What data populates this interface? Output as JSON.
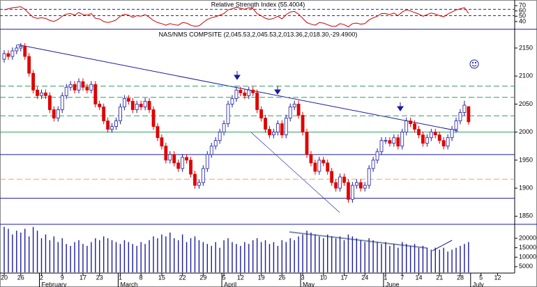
{
  "chart_data": [
    {
      "type": "line",
      "title": "Relative Strength Index (55.4004)",
      "color": "#cc0000",
      "values": [
        62,
        64,
        66,
        67,
        68,
        63,
        55,
        48,
        46,
        47,
        46,
        42,
        40,
        44,
        50,
        54,
        55,
        52,
        57,
        53,
        52,
        55,
        46,
        45,
        40,
        38,
        40,
        43,
        50,
        54,
        52,
        48,
        51,
        50,
        53,
        48,
        42,
        38,
        36,
        33,
        36,
        34,
        33,
        38,
        37,
        33,
        31,
        32,
        38,
        44,
        47,
        49,
        52,
        55,
        62,
        64,
        67,
        65,
        63,
        66,
        64,
        55,
        51,
        46,
        44,
        46,
        50,
        45,
        53,
        58,
        59,
        54,
        46,
        38,
        35,
        33,
        38,
        37,
        34,
        31,
        31,
        36,
        34,
        30,
        36,
        37,
        35,
        36,
        43,
        47,
        50,
        55,
        55,
        53,
        56,
        51,
        58,
        62,
        60,
        57,
        54,
        50,
        53,
        56,
        54,
        51,
        49,
        54,
        58,
        62,
        64,
        66,
        55.4004,
        null,
        null,
        null,
        null,
        null,
        null,
        null
      ],
      "ylim": [
        28,
        78
      ],
      "yticks": [
        40,
        50,
        60,
        70
      ],
      "reference_lines": [
        63,
        51
      ],
      "reference_color": "#2020c0"
    },
    {
      "type": "candlestick",
      "title": "NAS/NMS COMPSITE (2,045.53,2,045.53,2,013.36,2,018.30,-29.4900)",
      "categories": [
        "20",
        null,
        null,
        null,
        "26",
        null,
        null,
        null,
        null,
        "2",
        null,
        null,
        null,
        null,
        "9",
        null,
        null,
        null,
        null,
        "17",
        null,
        null,
        null,
        "23",
        null,
        null,
        null,
        null,
        "1",
        null,
        null,
        null,
        null,
        "8",
        null,
        null,
        null,
        null,
        "15",
        null,
        null,
        null,
        null,
        "22",
        null,
        null,
        null,
        null,
        "29",
        null,
        null,
        null,
        null,
        "5",
        null,
        null,
        null,
        "12",
        null,
        null,
        null,
        null,
        "19",
        null,
        null,
        null,
        null,
        "26",
        null,
        null,
        null,
        null,
        "3",
        null,
        null,
        null,
        null,
        "10",
        null,
        null,
        null,
        null,
        "17",
        null,
        null,
        null,
        null,
        "24",
        null,
        null,
        null,
        null,
        "1",
        null,
        null,
        null,
        "7",
        null,
        null,
        null,
        "14",
        null,
        null,
        null,
        null,
        "21",
        null,
        null,
        null,
        null,
        "28",
        null,
        null,
        null,
        null,
        "5",
        null,
        null,
        null,
        "12"
      ],
      "months": [
        null,
        null,
        null,
        null,
        null,
        null,
        null,
        null,
        null,
        "February",
        null,
        null,
        null,
        null,
        null,
        null,
        null,
        null,
        null,
        null,
        null,
        null,
        null,
        null,
        null,
        null,
        null,
        null,
        "March",
        null,
        null,
        null,
        null,
        null,
        null,
        null,
        null,
        null,
        null,
        null,
        null,
        null,
        null,
        null,
        null,
        null,
        null,
        null,
        null,
        null,
        null,
        null,
        null,
        "April",
        null,
        null,
        null,
        null,
        null,
        null,
        null,
        null,
        null,
        null,
        null,
        null,
        null,
        null,
        null,
        null,
        null,
        null,
        "May",
        null,
        null,
        null,
        null,
        null,
        null,
        null,
        null,
        null,
        null,
        null,
        null,
        null,
        null,
        null,
        null,
        null,
        null,
        null,
        "June",
        null,
        null,
        null,
        null,
        null,
        null,
        null,
        null,
        null,
        null,
        null,
        null,
        null,
        null,
        null,
        null,
        null,
        null,
        null,
        null,
        "July",
        null,
        null,
        null,
        null,
        null,
        null
      ],
      "open": [
        2130,
        2140,
        2135,
        2145,
        2150,
        2153,
        2135,
        2105,
        2075,
        2065,
        2070,
        2065,
        2040,
        2025,
        2040,
        2065,
        2080,
        2085,
        2075,
        2090,
        2080,
        2075,
        2085,
        2050,
        2045,
        2020,
        2005,
        2010,
        2020,
        2045,
        2060,
        2055,
        2040,
        2050,
        2045,
        2055,
        2040,
        2010,
        1990,
        1975,
        1950,
        1960,
        1945,
        1935,
        1955,
        1950,
        1925,
        1905,
        1910,
        1935,
        1960,
        1975,
        1985,
        2000,
        2015,
        2050,
        2060,
        2075,
        2070,
        2065,
        2075,
        2070,
        2040,
        2025,
        2005,
        1995,
        2000,
        2015,
        1995,
        2025,
        2045,
        2050,
        2030,
        2000,
        1960,
        1945,
        1930,
        1950,
        1945,
        1930,
        1910,
        1900,
        1920,
        1910,
        1880,
        1905,
        1910,
        1900,
        1905,
        1935,
        1950,
        1965,
        1985,
        1985,
        1980,
        1990,
        1975,
        2000,
        2020,
        2015,
        2005,
        1995,
        1980,
        1990,
        2000,
        1995,
        1985,
        1975,
        1990,
        2005,
        2020,
        2035,
        2045.53,
        null,
        null,
        null,
        null,
        null,
        null,
        null
      ],
      "high": [
        2146,
        2146,
        2151,
        2156,
        2159,
        2159,
        2141,
        2111,
        2081,
        2076,
        2076,
        2071,
        2046,
        2046,
        2071,
        2086,
        2091,
        2091,
        2096,
        2096,
        2086,
        2091,
        2091,
        2056,
        2051,
        2026,
        2016,
        2026,
        2051,
        2066,
        2066,
        2061,
        2056,
        2056,
        2061,
        2061,
        2046,
        2016,
        1996,
        1981,
        1966,
        1966,
        1951,
        1961,
        1961,
        1956,
        1931,
        1916,
        1941,
        1966,
        1981,
        1991,
        2006,
        2021,
        2056,
        2066,
        2081,
        2081,
        2076,
        2081,
        2081,
        2076,
        2046,
        2031,
        2011,
        2006,
        2021,
        2021,
        2031,
        2051,
        2056,
        2056,
        2036,
        2006,
        1966,
        1951,
        1956,
        1956,
        1951,
        1936,
        1916,
        1926,
        1926,
        1916,
        1911,
        1916,
        1916,
        1911,
        1941,
        1956,
        1971,
        1991,
        1991,
        1991,
        1996,
        1996,
        2006,
        2026,
        2026,
        2021,
        2011,
        2001,
        1996,
        2006,
        2006,
        2001,
        1991,
        1996,
        2011,
        2026,
        2041,
        2056,
        2045.53,
        null,
        null,
        null,
        null,
        null,
        null,
        null
      ],
      "low": [
        2124,
        2129,
        2129,
        2139,
        2144,
        2129,
        2099,
        2069,
        2059,
        2059,
        2059,
        2034,
        2019,
        2019,
        2034,
        2059,
        2074,
        2069,
        2069,
        2074,
        2069,
        2069,
        2044,
        2039,
        2014,
        1999,
        1999,
        2004,
        2014,
        2039,
        2049,
        2034,
        2034,
        2039,
        2039,
        2034,
        2004,
        1984,
        1969,
        1944,
        1944,
        1939,
        1929,
        1929,
        1944,
        1919,
        1899,
        1899,
        1904,
        1929,
        1954,
        1969,
        1979,
        1994,
        2009,
        2044,
        2054,
        2064,
        2059,
        2059,
        2064,
        2034,
        2019,
        1999,
        1989,
        1989,
        1994,
        1989,
        1989,
        2019,
        2039,
        2024,
        1994,
        1954,
        1939,
        1924,
        1924,
        1939,
        1924,
        1904,
        1894,
        1894,
        1904,
        1874,
        1874,
        1899,
        1894,
        1894,
        1899,
        1929,
        1944,
        1959,
        1979,
        1974,
        1974,
        1969,
        1969,
        1994,
        2009,
        1999,
        1989,
        1974,
        1974,
        1984,
        1989,
        1979,
        1969,
        1969,
        1984,
        1999,
        2014,
        2029,
        2013.36,
        null,
        null,
        null,
        null,
        null,
        null,
        null
      ],
      "close": [
        2140,
        2135,
        2145,
        2150,
        2153,
        2135,
        2105,
        2075,
        2065,
        2070,
        2065,
        2040,
        2025,
        2040,
        2065,
        2080,
        2085,
        2075,
        2090,
        2080,
        2075,
        2085,
        2050,
        2045,
        2020,
        2005,
        2010,
        2020,
        2045,
        2060,
        2055,
        2040,
        2050,
        2045,
        2055,
        2040,
        2010,
        1990,
        1975,
        1950,
        1960,
        1945,
        1935,
        1955,
        1950,
        1925,
        1905,
        1910,
        1935,
        1960,
        1975,
        1985,
        2000,
        2015,
        2050,
        2060,
        2075,
        2070,
        2065,
        2075,
        2070,
        2040,
        2025,
        2005,
        1995,
        2000,
        2015,
        1995,
        2025,
        2045,
        2050,
        2030,
        2000,
        1960,
        1945,
        1930,
        1950,
        1945,
        1930,
        1910,
        1900,
        1920,
        1910,
        1880,
        1905,
        1910,
        1900,
        1905,
        1935,
        1950,
        1965,
        1985,
        1985,
        1980,
        1990,
        1975,
        2000,
        2020,
        2015,
        2005,
        1995,
        1980,
        1990,
        2000,
        1995,
        1985,
        1975,
        1990,
        2005,
        2020,
        2035,
        2048,
        2018.3,
        null,
        null,
        null,
        null,
        null,
        null,
        null
      ],
      "up_color": "#1a1aa0",
      "down_color": "#e00000",
      "ylim": [
        1838,
        2181
      ],
      "yticks": [
        1850,
        1900,
        1950,
        2000,
        2050,
        2100,
        2150
      ],
      "levels": [
        {
          "value": 2082,
          "color": "#2e9e5e",
          "dashed": true
        },
        {
          "value": 2062,
          "color": "#2e9e5e",
          "dashed": true
        },
        {
          "value": 2029,
          "color": "#2e9e5e",
          "dashed": true
        },
        {
          "value": 2000,
          "color": "#2e9e5e",
          "dashed": false
        },
        {
          "value": 1960,
          "color": "#1a1aa0",
          "dashed": false
        },
        {
          "value": 1916,
          "color": "#f0a060",
          "dashed": true
        },
        {
          "value": 1882,
          "color": "#1a1aa0",
          "dashed": false
        }
      ]
    },
    {
      "type": "bar",
      "color": "#1a1aa0",
      "values": [
        26000,
        25000,
        22000,
        24000,
        23000,
        25000,
        21000,
        26000,
        24000,
        20000,
        22000,
        19000,
        21000,
        18000,
        20000,
        17000,
        16000,
        18000,
        19000,
        17000,
        16000,
        18000,
        20000,
        19000,
        21000,
        20000,
        19000,
        18000,
        17000,
        19000,
        18000,
        17000,
        16000,
        18000,
        17000,
        19000,
        21000,
        20000,
        22000,
        21000,
        23000,
        20000,
        19000,
        22000,
        18000,
        20000,
        21000,
        19000,
        18000,
        17000,
        16000,
        18000,
        15000,
        19000,
        20000,
        18000,
        17000,
        16000,
        18000,
        17000,
        19000,
        20000,
        18000,
        19000,
        17000,
        18000,
        16000,
        19000,
        18000,
        20000,
        19000,
        21000,
        22000,
        24000,
        23000,
        22000,
        21000,
        20000,
        22000,
        21000,
        20000,
        21000,
        19000,
        22000,
        21000,
        20000,
        19000,
        18000,
        20000,
        19000,
        18000,
        17000,
        18000,
        16000,
        17000,
        15000,
        18000,
        17000,
        16000,
        17000,
        15000,
        16000,
        15000,
        14000,
        15000,
        14000,
        15000,
        13000,
        14000,
        15000,
        16000,
        17000,
        18000,
        null,
        null,
        null,
        null,
        null,
        null,
        null
      ],
      "ylim": [
        2000,
        27000
      ],
      "yticks": [
        5000,
        10000,
        15000,
        20000
      ]
    }
  ]
}
